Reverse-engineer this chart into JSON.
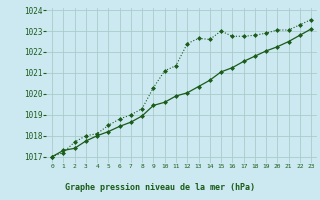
{
  "title": "Graphe pression niveau de la mer (hPa)",
  "bg_color": "#cce8f0",
  "grid_color": "#aacccc",
  "line_color": "#1a5c1a",
  "ylim": [
    1016.7,
    1024.1
  ],
  "yticks": [
    1017,
    1018,
    1019,
    1020,
    1021,
    1022,
    1023,
    1024
  ],
  "n_hours": 24,
  "series1": [
    1017.0,
    1017.2,
    1017.7,
    1018.0,
    1018.1,
    1018.5,
    1018.8,
    1019.0,
    1019.3,
    1020.3,
    1021.1,
    1021.35,
    1022.4,
    1022.65,
    1022.6,
    1023.0,
    1022.75,
    1022.75,
    1022.8,
    1022.9,
    1023.05,
    1023.05,
    1023.3,
    1023.55
  ],
  "series2": [
    1017.0,
    1017.3,
    1017.4,
    1017.75,
    1018.0,
    1018.2,
    1018.45,
    1018.65,
    1018.95,
    1019.45,
    1019.6,
    1019.9,
    1020.05,
    1020.35,
    1020.65,
    1021.05,
    1021.25,
    1021.55,
    1021.8,
    1022.05,
    1022.25,
    1022.5,
    1022.8,
    1023.1
  ]
}
